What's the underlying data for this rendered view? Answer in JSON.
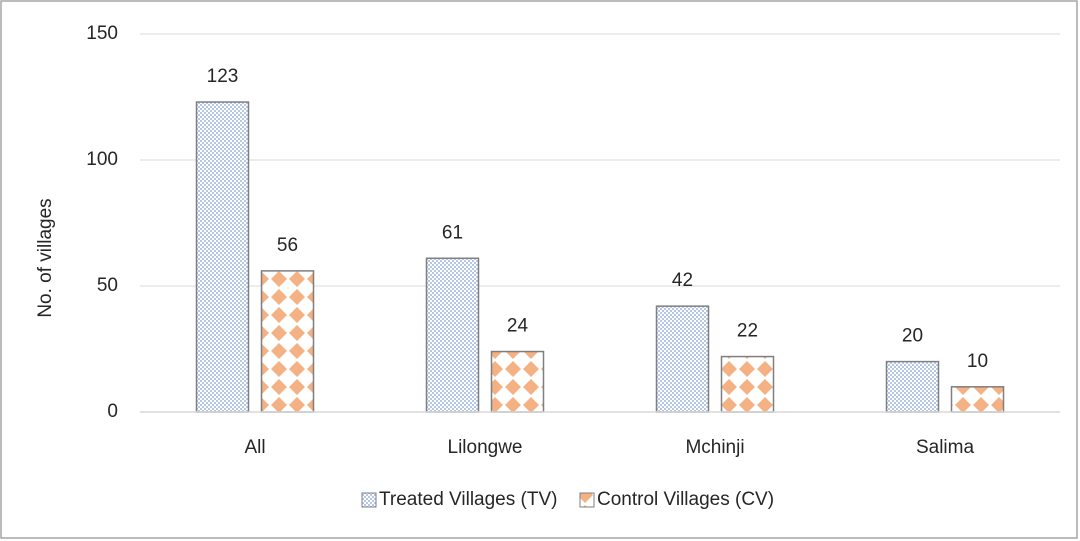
{
  "chart_data": {
    "type": "bar",
    "y_label": "No. of villages",
    "categories": [
      "All",
      "Lilongwe",
      "Mchinji",
      "Salima"
    ],
    "series": [
      {
        "name": "Treated Villages (TV)",
        "color": "#b4c7e7",
        "values": [
          123,
          61,
          42,
          20
        ]
      },
      {
        "name": "Control Villages (CV)",
        "color": "#f4b183",
        "values": [
          56,
          24,
          22,
          10
        ]
      }
    ],
    "ylim": [
      0,
      150
    ],
    "yticks": [
      0,
      50,
      100,
      150
    ],
    "grid": true,
    "legend": "bottom"
  }
}
